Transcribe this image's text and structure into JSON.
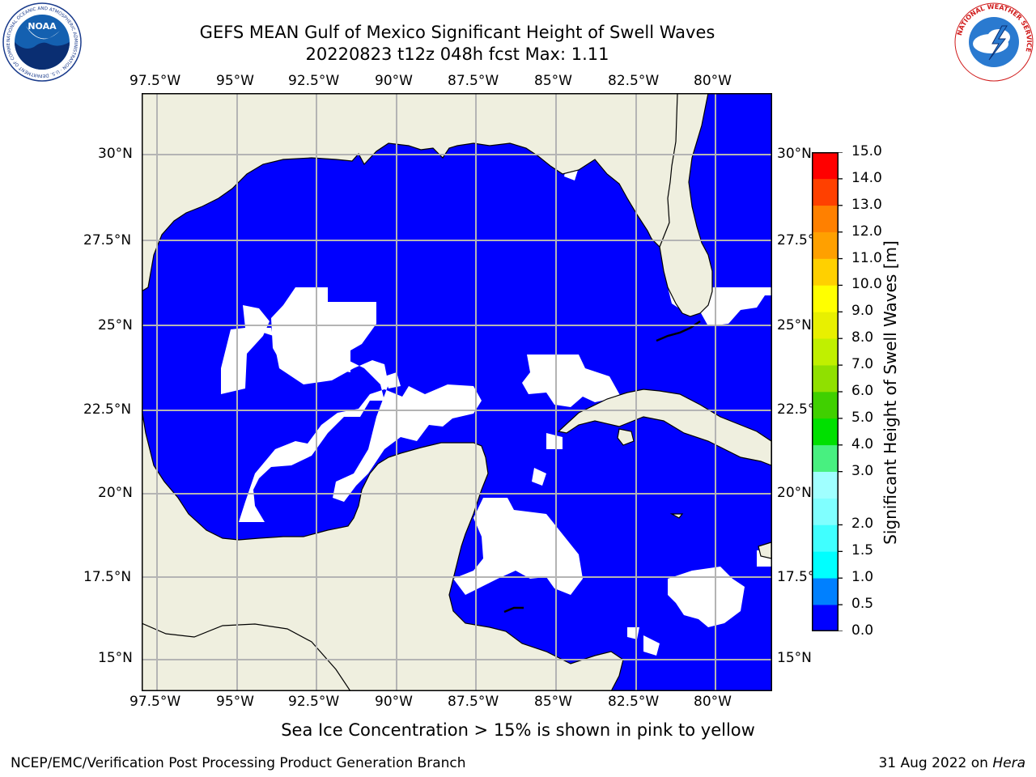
{
  "title": {
    "line1": "GEFS MEAN Gulf of Mexico Significant Height of Swell Waves",
    "line2": "20220823 t12z 048h fcst   Max: 1.11"
  },
  "map": {
    "region": "Gulf of Mexico",
    "lon_range": [
      -98,
      -78.2
    ],
    "lat_range": [
      14,
      31.7
    ],
    "lon_ticks": [
      "97.5°W",
      "95°W",
      "92.5°W",
      "90°W",
      "87.5°W",
      "85°W",
      "82.5°W",
      "80°W"
    ],
    "lat_ticks": [
      "30°N",
      "27.5°N",
      "25°N",
      "22.5°N",
      "20°N",
      "17.5°N",
      "15°N"
    ],
    "colors": {
      "land": "#efefdf",
      "ocean_low": "#0000ff",
      "ocean_mid": "#0080ff",
      "ocean_high": "#00ffff",
      "grid": "#b4b4b4"
    }
  },
  "colorbar": {
    "label": "Significant Height of Swell Waves [m]",
    "levels": [
      "0.0",
      "0.5",
      "1.0",
      "1.5",
      "2.0",
      "2.5",
      "3.0",
      "4.0",
      "5.0",
      "6.0",
      "7.0",
      "8.0",
      "9.0",
      "10.0",
      "11.0",
      "12.0",
      "13.0",
      "14.0",
      "15.0"
    ],
    "level_labels": [
      "0.0",
      "0.5",
      "1.0",
      "1.5",
      "2.0",
      "3.0",
      "4.0",
      "5.0",
      "6.0",
      "7.0",
      "8.0",
      "9.0",
      "10.0",
      "11.0",
      "12.0",
      "13.0",
      "14.0",
      "15.0"
    ],
    "colors": [
      "#0000ff",
      "#0080ff",
      "#00ffff",
      "#40ffff",
      "#80ffff",
      "#a0ffff",
      "#48f080",
      "#00e000",
      "#40d000",
      "#90e000",
      "#c0f000",
      "#e8f000",
      "#ffff00",
      "#ffd000",
      "#ffa000",
      "#ff8000",
      "#ff4000",
      "#ff0000"
    ]
  },
  "note": "Sea Ice Concentration > 15% is shown in pink to yellow",
  "footer": {
    "left": "NCEP/EMC/Verification Post Processing Product Generation Branch",
    "right_date": "31 Aug 2022 on ",
    "right_host": "Hera"
  },
  "logos": {
    "noaa": {
      "text": "NOAA",
      "ring_text": "NATIONAL OCEANIC AND ATMOSPHERIC ADMINISTRATION · U.S. DEPARTMENT OF COMMERCE"
    },
    "nws": {
      "ring_text": "NATIONAL WEATHER SERVICE"
    }
  }
}
